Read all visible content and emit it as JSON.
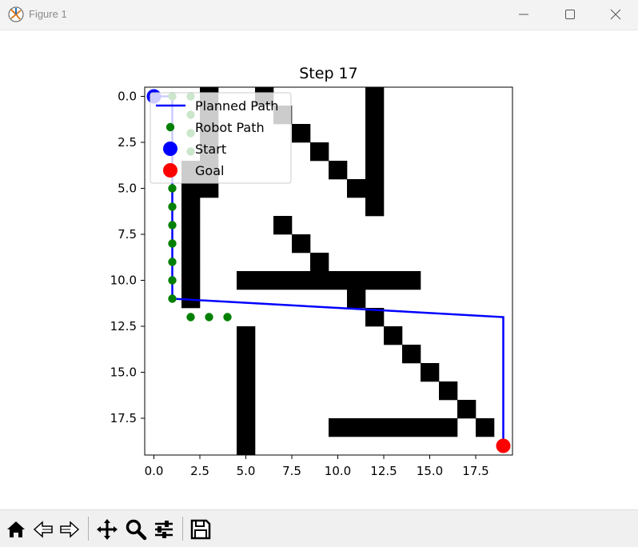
{
  "window": {
    "title": "Figure 1",
    "icon": "matplotlib-icon",
    "controls": [
      "minimize-icon",
      "maximize-icon",
      "close-icon"
    ]
  },
  "toolbar": {
    "tools": [
      "home-icon",
      "back-icon",
      "forward-icon",
      "pan-icon",
      "zoom-icon",
      "configure-subplots-icon",
      "save-icon"
    ]
  },
  "chart_data": {
    "type": "heatmap",
    "title": "Step 17",
    "grid_size": [
      20,
      20
    ],
    "xlim": [
      -0.5,
      19.5
    ],
    "ylim": [
      19.5,
      -0.5
    ],
    "y_inverted": true,
    "grid": false,
    "xticks": [
      0.0,
      2.5,
      5.0,
      7.5,
      10.0,
      12.5,
      15.0,
      17.5
    ],
    "yticks": [
      0.0,
      2.5,
      5.0,
      7.5,
      10.0,
      12.5,
      15.0,
      17.5
    ],
    "xtick_labels": [
      "0.0",
      "2.5",
      "5.0",
      "7.5",
      "10.0",
      "12.5",
      "15.0",
      "17.5"
    ],
    "ytick_labels": [
      "0.0",
      "2.5",
      "5.0",
      "7.5",
      "10.0",
      "12.5",
      "15.0",
      "17.5"
    ],
    "obstacles": [
      [
        0,
        3
      ],
      [
        1,
        3
      ],
      [
        2,
        3
      ],
      [
        3,
        3
      ],
      [
        4,
        3
      ],
      [
        5,
        3
      ],
      [
        4,
        2
      ],
      [
        5,
        2
      ],
      [
        6,
        2
      ],
      [
        7,
        2
      ],
      [
        8,
        2
      ],
      [
        9,
        2
      ],
      [
        10,
        2
      ],
      [
        11,
        2
      ],
      [
        0,
        6
      ],
      [
        1,
        7
      ],
      [
        2,
        8
      ],
      [
        3,
        9
      ],
      [
        4,
        10
      ],
      [
        5,
        11
      ],
      [
        5,
        12
      ],
      [
        0,
        12
      ],
      [
        1,
        12
      ],
      [
        2,
        12
      ],
      [
        3,
        12
      ],
      [
        4,
        12
      ],
      [
        6,
        12
      ],
      [
        7,
        7
      ],
      [
        8,
        8
      ],
      [
        9,
        9
      ],
      [
        10,
        5
      ],
      [
        10,
        6
      ],
      [
        10,
        7
      ],
      [
        10,
        8
      ],
      [
        10,
        9
      ],
      [
        10,
        10
      ],
      [
        10,
        11
      ],
      [
        10,
        12
      ],
      [
        10,
        13
      ],
      [
        10,
        14
      ],
      [
        11,
        11
      ],
      [
        12,
        12
      ],
      [
        13,
        13
      ],
      [
        14,
        14
      ],
      [
        15,
        15
      ],
      [
        16,
        16
      ],
      [
        17,
        17
      ],
      [
        18,
        18
      ],
      [
        18,
        10
      ],
      [
        18,
        11
      ],
      [
        18,
        12
      ],
      [
        18,
        13
      ],
      [
        18,
        14
      ],
      [
        18,
        15
      ],
      [
        18,
        16
      ],
      [
        13,
        5
      ],
      [
        14,
        5
      ],
      [
        15,
        5
      ],
      [
        16,
        5
      ],
      [
        17,
        5
      ],
      [
        18,
        5
      ],
      [
        19,
        5
      ]
    ],
    "series": [
      {
        "name": "Planned Path",
        "color": "#0000ff",
        "x": [
          0,
          1,
          1,
          1,
          1,
          1,
          1,
          1,
          1,
          1,
          1,
          1,
          1,
          19,
          19
        ],
        "y": [
          0,
          0,
          1,
          2,
          3,
          4,
          5,
          6,
          7,
          8,
          9,
          10,
          11,
          12,
          19
        ]
      },
      {
        "name": "Robot Path",
        "color": "#008000",
        "x": [
          1,
          2,
          2,
          2,
          2,
          1,
          1,
          1,
          1,
          1,
          1,
          1,
          1,
          2,
          3,
          4
        ],
        "y": [
          0,
          0,
          1,
          2,
          3,
          4,
          5,
          6,
          7,
          8,
          9,
          10,
          11,
          12,
          12,
          12
        ]
      },
      {
        "name": "Start",
        "color": "#0000ff",
        "x": [
          0
        ],
        "y": [
          0
        ]
      },
      {
        "name": "Goal",
        "color": "#ff0000",
        "x": [
          19
        ],
        "y": [
          19
        ]
      }
    ],
    "legend": {
      "placement": "upper-left",
      "entries": [
        "Planned Path",
        "Robot Path",
        "Start",
        "Goal"
      ]
    }
  }
}
